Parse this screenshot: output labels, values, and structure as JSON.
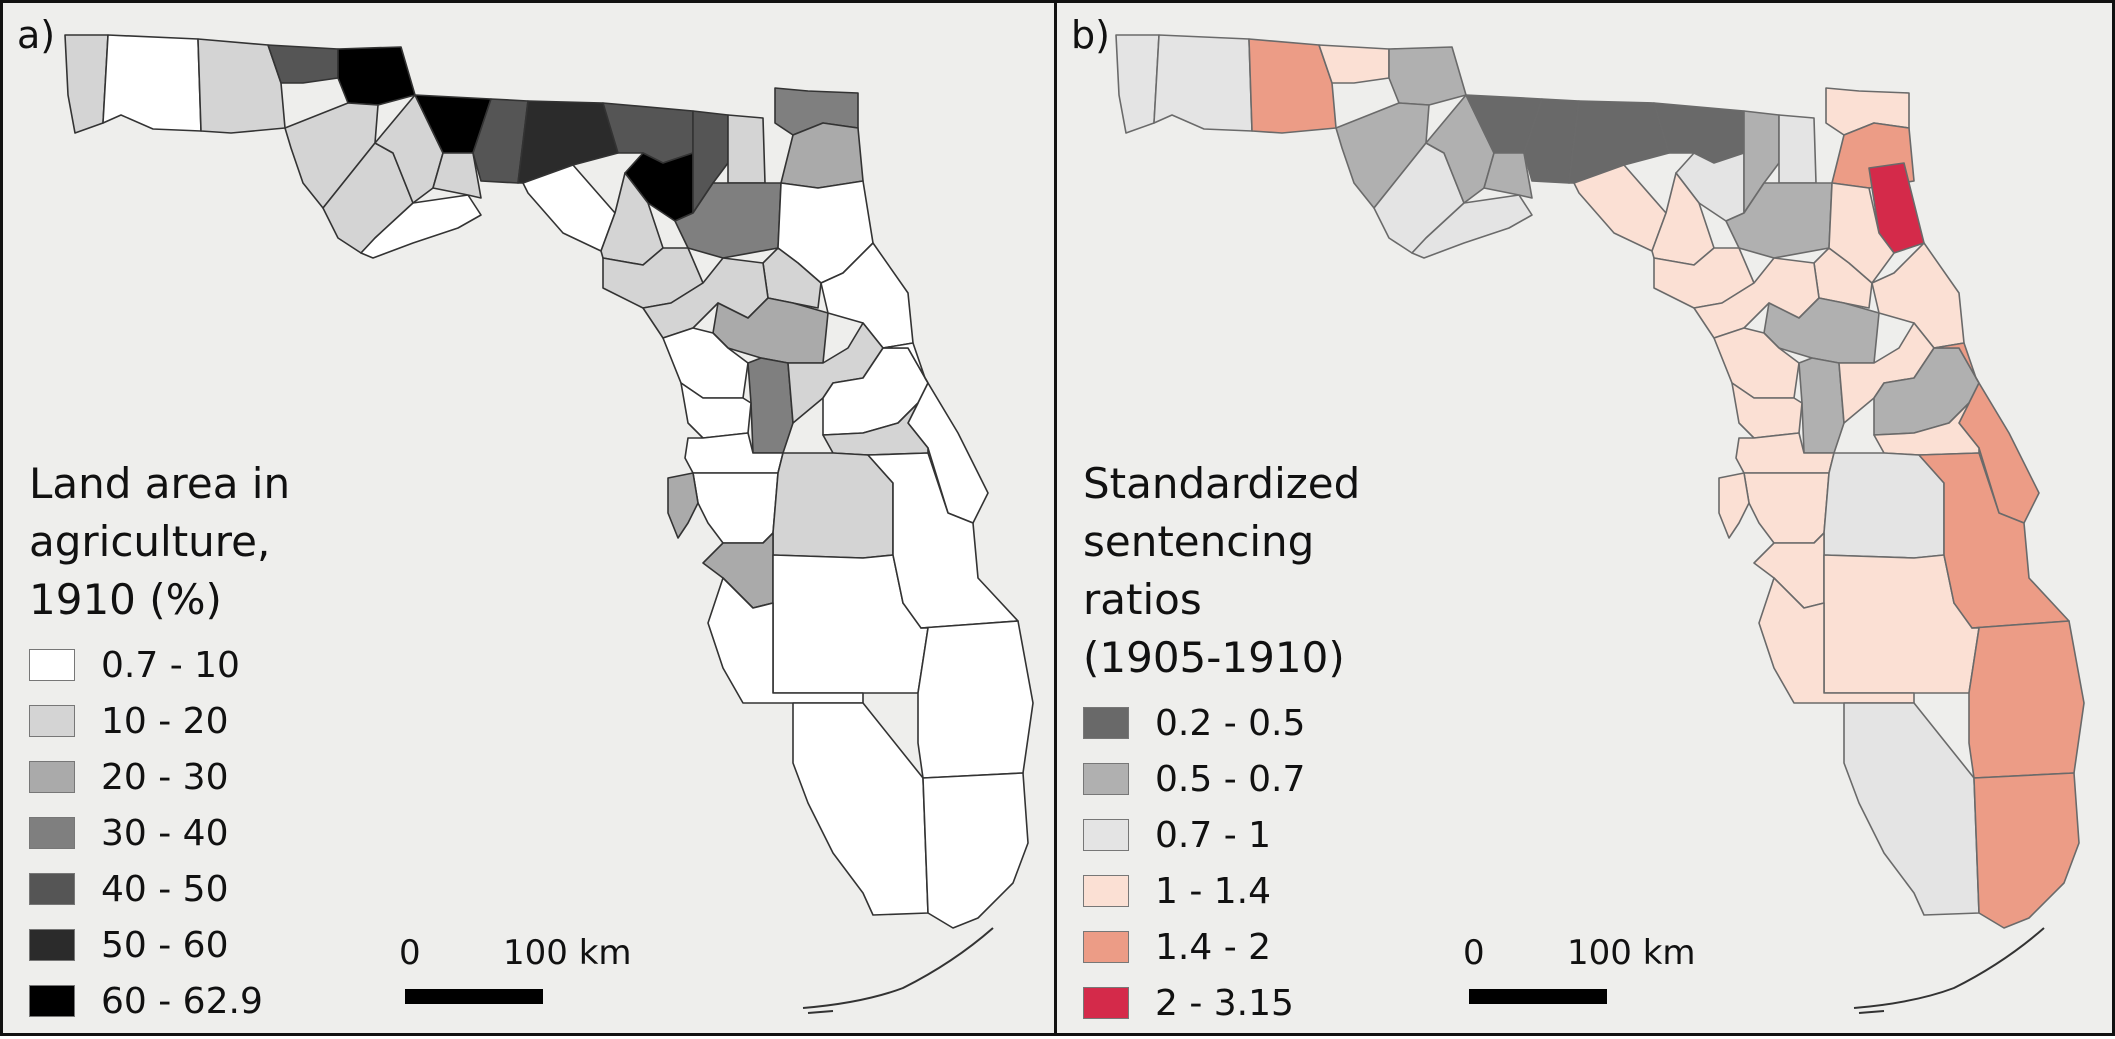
{
  "panel_a": {
    "label": "a)",
    "legend": {
      "title": "Land area in\nagriculture,\n1910 (%)",
      "classes": [
        {
          "label": "0.7 - 10",
          "color": "#ffffff"
        },
        {
          "label": "10 - 20",
          "color": "#d4d4d4"
        },
        {
          "label": "20 - 30",
          "color": "#aaaaaa"
        },
        {
          "label": "30 - 40",
          "color": "#7f7f7f"
        },
        {
          "label": "40 - 50",
          "color": "#555555"
        },
        {
          "label": "50 - 60",
          "color": "#2b2b2b"
        },
        {
          "label": "60 - 62.9",
          "color": "#000000"
        }
      ]
    },
    "scalebar": {
      "zero": "0",
      "max": "100 km"
    }
  },
  "panel_b": {
    "label": "b)",
    "legend": {
      "title": "Standardized\nsentencing\nratios\n(1905-1910)",
      "classes": [
        {
          "label": "0.2 - 0.5",
          "color": "#696969"
        },
        {
          "label": "0.5 - 0.7",
          "color": "#b0b0b0"
        },
        {
          "label": "0.7 - 1",
          "color": "#e4e4e4"
        },
        {
          "label": "1 - 1.4",
          "color": "#fbe0d4"
        },
        {
          "label": "1.4 - 2",
          "color": "#ec9c86"
        },
        {
          "label": "2 - 3.15",
          "color": "#d42a4a"
        }
      ]
    },
    "scalebar": {
      "zero": "0",
      "max": "100 km"
    }
  },
  "map_colors": {
    "background": "#eeeeec",
    "county_border": "#333333"
  }
}
